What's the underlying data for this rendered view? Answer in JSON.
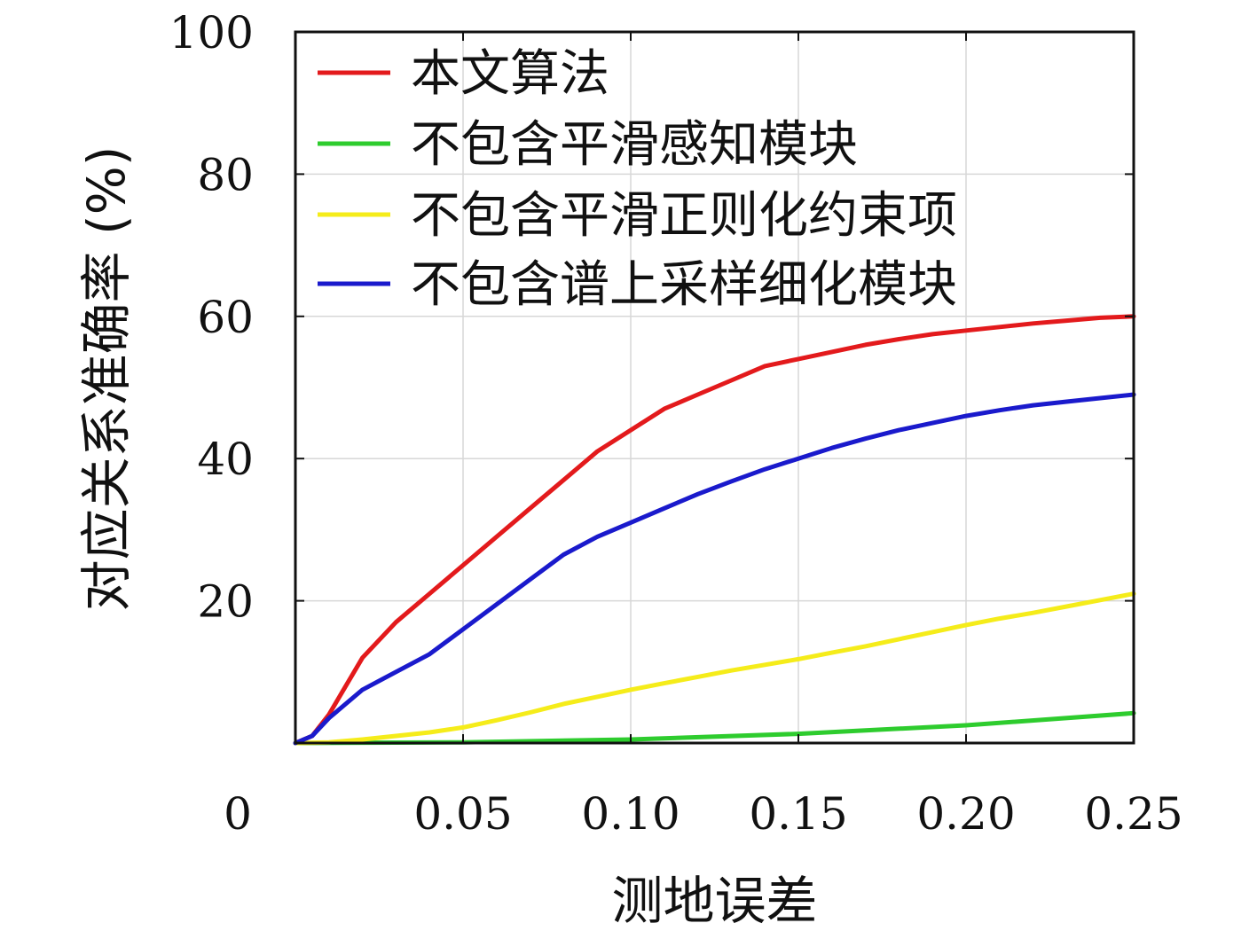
{
  "chart_data": {
    "type": "line",
    "title": "",
    "xlabel": "测地误差",
    "ylabel": "对应关系准确率 (%)",
    "xlim": [
      0,
      0.25
    ],
    "ylim": [
      0,
      100
    ],
    "x_ticks": [
      0.05,
      0.1,
      0.15,
      0.2,
      0.25
    ],
    "x_tick_labels": [
      "0.05",
      "0.10",
      "0.15",
      "0.20",
      "0.25"
    ],
    "y_ticks": [
      20,
      40,
      60,
      80,
      100
    ],
    "y_tick_labels": [
      "20",
      "40",
      "60",
      "80",
      "100"
    ],
    "origin_label": "0",
    "grid": true,
    "legend_position": "top-left",
    "series": [
      {
        "name": "本文算法",
        "color": "#e31a1c",
        "points": [
          [
            0,
            0
          ],
          [
            0.005,
            1
          ],
          [
            0.01,
            4
          ],
          [
            0.02,
            12
          ],
          [
            0.03,
            17
          ],
          [
            0.04,
            21
          ],
          [
            0.05,
            25
          ],
          [
            0.06,
            29
          ],
          [
            0.07,
            33
          ],
          [
            0.08,
            37
          ],
          [
            0.09,
            41
          ],
          [
            0.1,
            44
          ],
          [
            0.11,
            47
          ],
          [
            0.12,
            49
          ],
          [
            0.13,
            51
          ],
          [
            0.14,
            53
          ],
          [
            0.15,
            54
          ],
          [
            0.16,
            55
          ],
          [
            0.17,
            56
          ],
          [
            0.18,
            56.8
          ],
          [
            0.19,
            57.5
          ],
          [
            0.2,
            58
          ],
          [
            0.21,
            58.5
          ],
          [
            0.22,
            59
          ],
          [
            0.23,
            59.4
          ],
          [
            0.24,
            59.8
          ],
          [
            0.25,
            60
          ]
        ]
      },
      {
        "name": "不包含平滑感知模块",
        "color": "#2ecc2e",
        "points": [
          [
            0,
            0
          ],
          [
            0.05,
            0.1
          ],
          [
            0.1,
            0.5
          ],
          [
            0.15,
            1.3
          ],
          [
            0.2,
            2.5
          ],
          [
            0.25,
            4.2
          ]
        ]
      },
      {
        "name": "不包含平滑正则化约束项",
        "color": "#f5ec1a",
        "points": [
          [
            0,
            0
          ],
          [
            0.01,
            0.1
          ],
          [
            0.02,
            0.5
          ],
          [
            0.03,
            1
          ],
          [
            0.04,
            1.5
          ],
          [
            0.05,
            2.2
          ],
          [
            0.06,
            3.2
          ],
          [
            0.07,
            4.3
          ],
          [
            0.08,
            5.5
          ],
          [
            0.09,
            6.5
          ],
          [
            0.1,
            7.5
          ],
          [
            0.11,
            8.4
          ],
          [
            0.12,
            9.3
          ],
          [
            0.13,
            10.2
          ],
          [
            0.14,
            11
          ],
          [
            0.15,
            11.8
          ],
          [
            0.16,
            12.7
          ],
          [
            0.17,
            13.6
          ],
          [
            0.18,
            14.6
          ],
          [
            0.19,
            15.6
          ],
          [
            0.2,
            16.6
          ],
          [
            0.21,
            17.5
          ],
          [
            0.22,
            18.3
          ],
          [
            0.23,
            19.2
          ],
          [
            0.24,
            20.1
          ],
          [
            0.25,
            21
          ]
        ]
      },
      {
        "name": "不包含谱上采样细化模块",
        "color": "#1a1acc",
        "points": [
          [
            0,
            0
          ],
          [
            0.005,
            1
          ],
          [
            0.01,
            3.5
          ],
          [
            0.02,
            7.5
          ],
          [
            0.03,
            10
          ],
          [
            0.04,
            12.5
          ],
          [
            0.05,
            16
          ],
          [
            0.06,
            19.5
          ],
          [
            0.07,
            23
          ],
          [
            0.08,
            26.5
          ],
          [
            0.09,
            29
          ],
          [
            0.1,
            31
          ],
          [
            0.11,
            33
          ],
          [
            0.12,
            35
          ],
          [
            0.13,
            36.8
          ],
          [
            0.14,
            38.5
          ],
          [
            0.15,
            40
          ],
          [
            0.16,
            41.5
          ],
          [
            0.17,
            42.8
          ],
          [
            0.18,
            44
          ],
          [
            0.19,
            45
          ],
          [
            0.2,
            46
          ],
          [
            0.21,
            46.8
          ],
          [
            0.22,
            47.5
          ],
          [
            0.23,
            48
          ],
          [
            0.24,
            48.5
          ],
          [
            0.25,
            49
          ]
        ]
      }
    ]
  }
}
